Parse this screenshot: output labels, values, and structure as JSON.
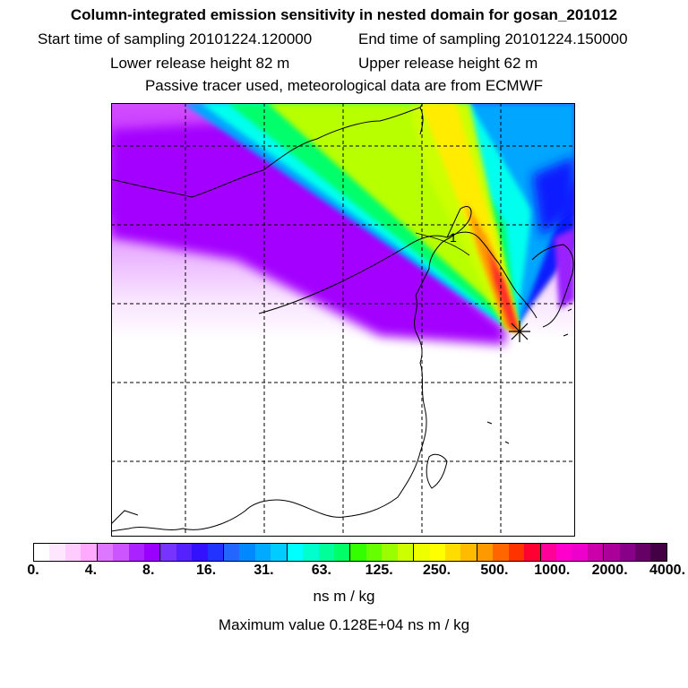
{
  "header": {
    "title": "Column-integrated emission sensitivity in nested domain for gosan_201012",
    "start_label": "Start time of sampling 20101224.120000",
    "end_label": "End time of sampling 20101224.150000",
    "lower_label": "Lower release height   82 m",
    "upper_label": "Upper release height   62 m",
    "tracer_note": "Passive tracer used, meteorological data are from ECMWF"
  },
  "map": {
    "receptor_marker": "asterisk-star",
    "contour_label": "1",
    "plume_colors": [
      "#ff00ff",
      "#ffd6ff",
      "#bf00ff",
      "#5a2bff",
      "#00aaff",
      "#00ffee",
      "#00ff66",
      "#c8ff00",
      "#ffe000",
      "#ff8a00",
      "#ff2a2a"
    ]
  },
  "legend": {
    "colors": [
      "#ffffff",
      "#ffe6ff",
      "#ffccff",
      "#ffaaff",
      "#dd77ff",
      "#cc55ff",
      "#aa22ff",
      "#9900ff",
      "#7733ff",
      "#5522ff",
      "#3311ff",
      "#2233ff",
      "#2266ff",
      "#0088ff",
      "#00aaff",
      "#00ccff",
      "#00ffff",
      "#00ffcc",
      "#00ff99",
      "#00ff66",
      "#33ff00",
      "#66ff00",
      "#99ff00",
      "#ccff00",
      "#eeff00",
      "#ffff00",
      "#ffdd00",
      "#ffbb00",
      "#ff9900",
      "#ff6600",
      "#ff3300",
      "#ff0033",
      "#ff0099",
      "#ff00cc",
      "#ee00cc",
      "#cc00aa",
      "#aa0099",
      "#880088",
      "#660066",
      "#440044"
    ],
    "labels": [
      "0.",
      "4.",
      "8.",
      "16.",
      "31.",
      "63.",
      "125.",
      "250.",
      "500.",
      "1000.",
      "2000.",
      "4000."
    ],
    "unit": "ns m / kg",
    "max_value_text": "Maximum value  0.128E+04 ns m / kg"
  }
}
